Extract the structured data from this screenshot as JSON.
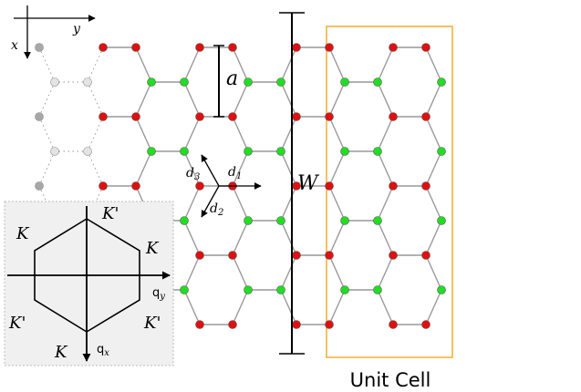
{
  "labels": {
    "axis_x": "x",
    "axis_y": "y",
    "a": "a",
    "W": "W",
    "d1": "d",
    "d1_sub": "1",
    "d2": "d",
    "d2_sub": "2",
    "d3": "d",
    "d3_sub": "3",
    "unit_cell": "Unit Cell",
    "k_top_left": "K",
    "k_top_right": "K'",
    "k_right": "K",
    "k_left_bottom": "K'",
    "k_right_bottom": "K'",
    "k_bottom": "K",
    "q_y": "q",
    "q_y_sub": "y",
    "q_x": "q",
    "q_x_sub": "x"
  },
  "colors": {
    "sublattice_a": "#22dd22",
    "sublattice_b": "#e01010",
    "ghost_light": "#e4e4e4",
    "ghost_dark": "#a8a8a8",
    "bond": "#999999",
    "unit_cell": "#f0b43c",
    "inset_bg": "#f0f0f0"
  }
}
